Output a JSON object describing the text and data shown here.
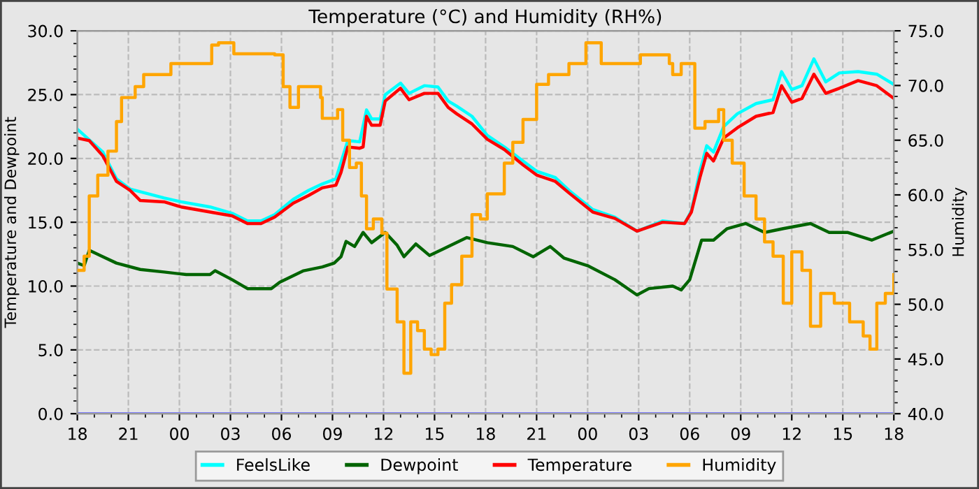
{
  "chart_data": {
    "type": "line",
    "title": "Temperature (°C) and Humidity (RH%)",
    "ylabel": "Temperature and Dewpoint",
    "y2label": "Humidity",
    "xlim": [
      18,
      66
    ],
    "xticks": [
      18,
      21,
      {
        "value": 24,
        "label": "00"
      },
      {
        "value": 27,
        "label": "03"
      },
      {
        "value": 30,
        "label": "06"
      },
      {
        "value": 33,
        "label": "09"
      },
      {
        "value": 36,
        "label": "12"
      },
      {
        "value": 39,
        "label": "15"
      },
      {
        "value": 42,
        "label": "18"
      },
      {
        "value": 45,
        "label": "21"
      },
      {
        "value": 48,
        "label": "00"
      },
      {
        "value": 51,
        "label": "03"
      },
      {
        "value": 54,
        "label": "06"
      },
      {
        "value": 57,
        "label": "09"
      },
      {
        "value": 60,
        "label": "12"
      },
      {
        "value": 63,
        "label": "15"
      },
      {
        "value": 66,
        "label": "18"
      }
    ],
    "ylim": [
      0,
      30
    ],
    "yticks": [
      {
        "value": 0,
        "label": "0.0"
      },
      {
        "value": 5,
        "label": "5.0"
      },
      {
        "value": 10,
        "label": "10.0"
      },
      {
        "value": 15,
        "label": "15.0"
      },
      {
        "value": 20,
        "label": "20.0"
      },
      {
        "value": 25,
        "label": "25.0"
      },
      {
        "value": 30,
        "label": "30.0"
      }
    ],
    "y2lim": [
      40,
      75
    ],
    "y2ticks": [
      {
        "value": 40,
        "label": "40.0"
      },
      {
        "value": 45,
        "label": "45.0"
      },
      {
        "value": 50,
        "label": "50.0"
      },
      {
        "value": 55,
        "label": "55.0"
      },
      {
        "value": 60,
        "label": "60.0"
      },
      {
        "value": 65,
        "label": "65.0"
      },
      {
        "value": 70,
        "label": "70.0"
      },
      {
        "value": 75,
        "label": "75.0"
      }
    ],
    "grid": true,
    "legend": "bottom",
    "line_style": "solid",
    "marker": "none",
    "ref_lines": [
      {
        "axis": "y",
        "value": 0,
        "color": "#8080ff"
      }
    ],
    "series": [
      {
        "name": "FeelsLike",
        "color": "#00ffff",
        "x": [
          18,
          19.5,
          20.3,
          21.1,
          23.1,
          24.1,
          25.8,
          27.1,
          28,
          28.8,
          29.6,
          30.7,
          31.6,
          32.4,
          33.2,
          33.9,
          34.6,
          35,
          35.3,
          35.8,
          36.1,
          37,
          37.5,
          38.4,
          39.2,
          39.8,
          40.3,
          41.2,
          42.1,
          43.1,
          44.2,
          45,
          46.1,
          46.9,
          48.3,
          49.6,
          50.9,
          52.4,
          53.7,
          54.1,
          54.6,
          55,
          55.4,
          56,
          56.8,
          57.9,
          58.9,
          59.4,
          60,
          60.6,
          61.3,
          62,
          62.8,
          63.9,
          65,
          66
        ],
        "values": [
          22.3,
          20.5,
          18.4,
          17.6,
          16.9,
          16.6,
          16.2,
          15.7,
          15.1,
          15.1,
          15.6,
          16.8,
          17.5,
          18.0,
          18.4,
          21.4,
          21.3,
          23.8,
          23.1,
          23.1,
          25.0,
          25.9,
          25.1,
          25.7,
          25.6,
          24.5,
          24.1,
          23.3,
          21.8,
          20.9,
          19.8,
          19.0,
          18.5,
          17.5,
          16.0,
          15.4,
          14.3,
          15.1,
          14.9,
          15.9,
          19.0,
          21.0,
          20.5,
          22.5,
          23.5,
          24.3,
          24.6,
          26.8,
          25.4,
          25.7,
          27.8,
          26.0,
          26.7,
          26.8,
          26.6,
          25.8
        ]
      },
      {
        "name": "Dewpoint",
        "color": "#006400",
        "x": [
          18,
          18.4,
          18.7,
          19.5,
          20.3,
          21.7,
          23.1,
          24.4,
          25.8,
          26.1,
          27.1,
          28,
          29.4,
          29.9,
          31.3,
          32.4,
          33.1,
          33.5,
          33.8,
          34.3,
          34.8,
          35.3,
          36.1,
          36.8,
          37.2,
          37.9,
          38.7,
          39.5,
          40.9,
          42.1,
          43.6,
          44.8,
          45.8,
          46.6,
          48,
          49.6,
          50.9,
          51.6,
          53,
          53.5,
          54,
          54.7,
          55.4,
          56.2,
          57.3,
          58.4,
          59.5,
          61.1,
          62.2,
          63.3,
          64.7,
          66
        ],
        "values": [
          11.8,
          11.6,
          12.8,
          12.3,
          11.8,
          11.3,
          11.1,
          10.9,
          10.9,
          11.2,
          10.5,
          9.8,
          9.8,
          10.3,
          11.2,
          11.5,
          11.8,
          12.3,
          13.5,
          13.1,
          14.2,
          13.4,
          14.2,
          13.2,
          12.3,
          13.3,
          12.4,
          12.9,
          13.8,
          13.4,
          13.1,
          12.3,
          13.1,
          12.2,
          11.6,
          10.5,
          9.3,
          9.8,
          10.0,
          9.7,
          10.5,
          13.6,
          13.6,
          14.5,
          14.9,
          14.2,
          14.5,
          14.9,
          14.2,
          14.2,
          13.6,
          14.3
        ]
      },
      {
        "name": "Temperature",
        "color": "#ff0000",
        "x": [
          18,
          18.7,
          19.5,
          20.3,
          21.1,
          21.7,
          23.1,
          24.1,
          25.8,
          27.1,
          28,
          28.8,
          29.6,
          30.7,
          31.6,
          32.4,
          33.2,
          33.5,
          33.9,
          34.6,
          34.8,
          35,
          35.3,
          35.8,
          36.1,
          37,
          37.5,
          38.4,
          39.2,
          39.8,
          40.3,
          41.2,
          42.1,
          43.1,
          44.2,
          45,
          46.1,
          46.9,
          48.3,
          49.6,
          50.9,
          52.4,
          53.7,
          54.1,
          54.6,
          55,
          55.4,
          56,
          56.8,
          57.9,
          58.9,
          59.4,
          60,
          60.6,
          61.3,
          62,
          62.8,
          63.9,
          65,
          66
        ],
        "values": [
          21.6,
          21.4,
          20.2,
          18.2,
          17.5,
          16.7,
          16.6,
          16.2,
          15.8,
          15.5,
          14.9,
          14.9,
          15.4,
          16.5,
          17.1,
          17.7,
          17.9,
          18.9,
          20.9,
          20.8,
          20.9,
          23.3,
          22.6,
          22.6,
          24.5,
          25.5,
          24.6,
          25.1,
          25.1,
          24.0,
          23.5,
          22.7,
          21.5,
          20.7,
          19.5,
          18.7,
          18.2,
          17.3,
          15.8,
          15.3,
          14.3,
          15.0,
          14.9,
          15.8,
          18.5,
          20.4,
          19.8,
          21.6,
          22.4,
          23.3,
          23.6,
          25.7,
          24.4,
          24.7,
          26.6,
          25.1,
          25.5,
          26.1,
          25.7,
          24.7
        ]
      },
      {
        "name": "Humidity",
        "color": "#ffa500",
        "type": "step",
        "axis": "y2",
        "x": [
          18,
          18.4,
          18.7,
          19.2,
          19.8,
          20.3,
          20.6,
          21.4,
          21.9,
          23.5,
          25.7,
          25.9,
          26.3,
          27.2,
          29.6,
          30.1,
          30.5,
          31,
          32,
          32.3,
          32.4,
          33.3,
          33.6,
          34,
          34.4,
          34.7,
          35,
          35.4,
          35.9,
          36.2,
          36.8,
          37.2,
          37.6,
          38,
          38.4,
          38.8,
          39.2,
          39.6,
          40,
          40.6,
          41.2,
          41.7,
          42.1,
          42.5,
          43.1,
          43.6,
          44.2,
          45,
          45.7,
          46.9,
          47.9,
          48.6,
          48.8,
          50.9,
          51.1,
          52.8,
          53,
          53.5,
          54,
          54.3,
          54.9,
          55.7,
          56,
          56.5,
          57.2,
          57.9,
          58.4,
          58.9,
          59.5,
          60,
          60.6,
          61.1,
          61.7,
          62.5,
          63.4,
          64.2,
          64.6,
          65,
          65.5,
          66
        ],
        "values": [
          53.1,
          54.4,
          59.9,
          61.8,
          64.0,
          66.7,
          68.9,
          69.9,
          71.0,
          72.0,
          72.0,
          73.7,
          73.9,
          72.9,
          72.8,
          69.9,
          68.0,
          69.9,
          69.9,
          68.9,
          67.0,
          67.8,
          65.0,
          62.5,
          62.9,
          59.9,
          56.9,
          57.8,
          56.5,
          51.4,
          48.4,
          43.7,
          48.4,
          47.6,
          45.9,
          45.4,
          45.9,
          50.1,
          51.8,
          54.4,
          58.2,
          57.8,
          60.1,
          60.1,
          62.9,
          64.8,
          66.9,
          70.1,
          71.0,
          72.0,
          73.9,
          73.9,
          72.0,
          72.0,
          72.8,
          72.0,
          71.0,
          72.0,
          72.0,
          66.1,
          66.7,
          67.8,
          65.0,
          62.9,
          59.9,
          57.8,
          55.7,
          54.4,
          50.1,
          54.8,
          53.1,
          48.0,
          51.0,
          50.1,
          48.4,
          47.1,
          45.9,
          50.1,
          51.0,
          52.7
        ]
      }
    ]
  }
}
